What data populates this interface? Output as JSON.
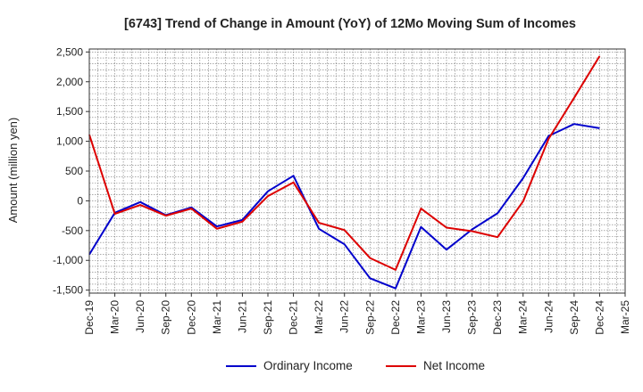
{
  "chart_data": {
    "type": "line",
    "title": "[6743]  Trend of Change in Amount (YoY) of 12Mo Moving Sum of Incomes",
    "xlabel": "",
    "ylabel": "Amount (million yen)",
    "categories": [
      "Dec-19",
      "Mar-20",
      "Jun-20",
      "Sep-20",
      "Dec-20",
      "Mar-21",
      "Jun-21",
      "Sep-21",
      "Dec-21",
      "Mar-22",
      "Jun-22",
      "Sep-22",
      "Dec-22",
      "Mar-23",
      "Jun-23",
      "Sep-23",
      "Dec-23",
      "Mar-24",
      "Jun-24",
      "Sep-24",
      "Dec-24",
      "Mar-25"
    ],
    "y_ticks": [
      2500,
      2000,
      1500,
      1000,
      500,
      0,
      -500,
      -1000,
      -1500
    ],
    "y_tick_labels": [
      "2,500",
      "2,000",
      "1,500",
      "1,000",
      "500",
      "0",
      "-500",
      "-1,000",
      "-1,500"
    ],
    "ylim": [
      -1550,
      2550
    ],
    "grid": true,
    "legend_position": "bottom-center",
    "series": [
      {
        "name": "Ordinary Income",
        "color": "#0000cc",
        "values": [
          -900,
          -200,
          -20,
          -240,
          -110,
          -430,
          -320,
          160,
          420,
          -470,
          -730,
          -1300,
          -1470,
          -440,
          -820,
          -480,
          -210,
          380,
          1090,
          1290,
          1220,
          null
        ]
      },
      {
        "name": "Net Income",
        "color": "#dd0000",
        "values": [
          1110,
          -220,
          -70,
          -250,
          -130,
          -470,
          -350,
          80,
          310,
          -370,
          -490,
          -960,
          -1160,
          -130,
          -450,
          -510,
          -610,
          -10,
          1040,
          1730,
          2430,
          null
        ]
      }
    ]
  }
}
